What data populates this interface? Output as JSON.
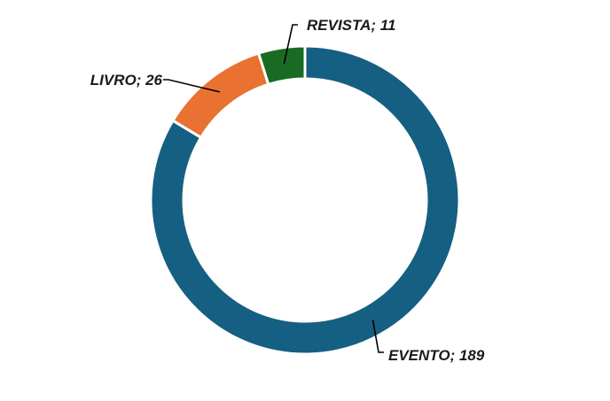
{
  "chart_data": {
    "type": "pie",
    "variant": "donut",
    "title": "",
    "categories": [
      "EVENTO",
      "LIVRO",
      "REVISTA"
    ],
    "values": [
      189,
      26,
      11
    ],
    "data_labels": [
      "EVENTO; 189",
      "LIVRO; 26",
      "REVISTA; 11"
    ],
    "colors": [
      "#155f82",
      "#e97132",
      "#196b24"
    ],
    "legend": "none",
    "start_angle_deg": 0,
    "direction": "clockwise"
  }
}
